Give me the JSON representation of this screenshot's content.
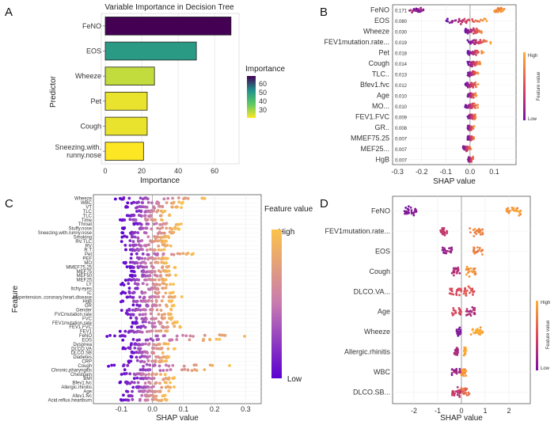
{
  "chart_data": [
    {
      "id": "A",
      "type": "bar",
      "orientation": "horizontal",
      "title": "Variable Importance in Decision Tree",
      "xlabel": "Importance",
      "ylabel": "Predictor",
      "categories": [
        "FeNO",
        "EOS",
        "Wheeze",
        "Pet",
        "Cough",
        "Sneezing.with.\nrunny.nose"
      ],
      "values": [
        69,
        50,
        27,
        23,
        23,
        21
      ],
      "xlim": [
        0,
        72
      ],
      "xticks": [
        0,
        20,
        40,
        60
      ],
      "legend": {
        "title": "Importance",
        "ticks": [
          30,
          40,
          50,
          60
        ],
        "range": [
          21,
          69
        ],
        "placement": "right"
      },
      "colors": {
        "high": "#440154",
        "mid": "#21918c",
        "low": "#fde725"
      }
    },
    {
      "id": "B",
      "type": "scatter",
      "subtype": "beeswarm",
      "xlabel": "SHAP value",
      "xlim": [
        -0.32,
        0.19
      ],
      "xticks": [
        -0.3,
        -0.2,
        -0.1,
        0.0,
        0.1
      ],
      "xtick_labels": [
        "-0.3",
        "-0.2",
        "-0.1",
        "0.0",
        "0.1"
      ],
      "features": [
        "FeNO",
        "EOS",
        "Wheeze",
        "FEV1mutation.rate...",
        "Pet",
        "Cough",
        "TLC..",
        "Bfev1.fvc",
        "Age",
        "MO...",
        "FEV1.FVC",
        "GR..",
        "MMEF75.25",
        "MEF25...",
        "HgB"
      ],
      "mean_abs_shap": [
        "0.171",
        "0.080",
        "0.030",
        "0.019",
        "0.018",
        "0.014",
        "0.013",
        "0.012",
        "0.010",
        "0.010",
        "0.009",
        "0.008",
        "0.007",
        "0.007",
        "0.007"
      ],
      "legend": {
        "title": "Feature value",
        "high": "High",
        "low": "Low",
        "placement": "right"
      }
    },
    {
      "id": "C",
      "type": "scatter",
      "subtype": "beeswarm",
      "xlabel": "SHAP value",
      "ylabel": "Feature",
      "xlim": [
        -0.19,
        0.35
      ],
      "xticks": [
        -0.1,
        0.0,
        0.1,
        0.2,
        0.3
      ],
      "xtick_labels": [
        "-0.1",
        "0.0",
        "0.1",
        "0.2",
        "0.3"
      ],
      "features": [
        "Wheeze",
        "WBC",
        "VT",
        "TLC",
        "TLC",
        "Time",
        "Throat",
        "Stuffy.nose",
        "Sneezing.with.runny.nose",
        "Smoking",
        "RV.TLC",
        "RV",
        "R.T",
        "Pet",
        "PEF",
        "MO",
        "MMEF75.25",
        "MEF75",
        "MEF50",
        "MEF25",
        "LY",
        "Itchy.eyes",
        "IC",
        "Hypertension..coronary.heart.disease",
        "HgB",
        "GR",
        "Gender",
        "FVCmutation.rate",
        "FVC",
        "FEV1mutation.rate",
        "FEV1.FVC",
        "FEV1",
        "FeNO",
        "EOS",
        "Dyspnea",
        "DLCO.VA",
        "DLCO.SB",
        "Diabetes",
        "CRP",
        "Cough",
        "Chronic.pharyngitis",
        "Chestpain",
        "BMI",
        "Bfev1.fvc",
        "Allergic.rhinitis",
        "Age",
        "Afev1.fvc",
        "Acid.reflux.heartburn"
      ],
      "legend": {
        "title": "Feature value",
        "high": "High",
        "low": "Low",
        "placement": "right"
      }
    },
    {
      "id": "D",
      "type": "scatter",
      "subtype": "beeswarm",
      "xlabel": "SHAP value",
      "xlim": [
        -2.9,
        2.9
      ],
      "xticks": [
        -2,
        -1,
        0,
        1,
        2
      ],
      "xtick_labels": [
        "-2",
        "-1",
        "0",
        "1",
        "2"
      ],
      "features": [
        "FeNO",
        "FEV1mutation.rate...",
        "EOS",
        "Cough",
        "DLCO.VA...",
        "Age",
        "Wheeze",
        "Allergic.rhinitis",
        "WBC",
        "DLCO.SB..."
      ],
      "legend": {
        "title": "Feature value",
        "high": "High",
        "low": "Low",
        "placement": "right"
      }
    }
  ],
  "panel_labels": [
    "A",
    "B",
    "C",
    "D"
  ]
}
